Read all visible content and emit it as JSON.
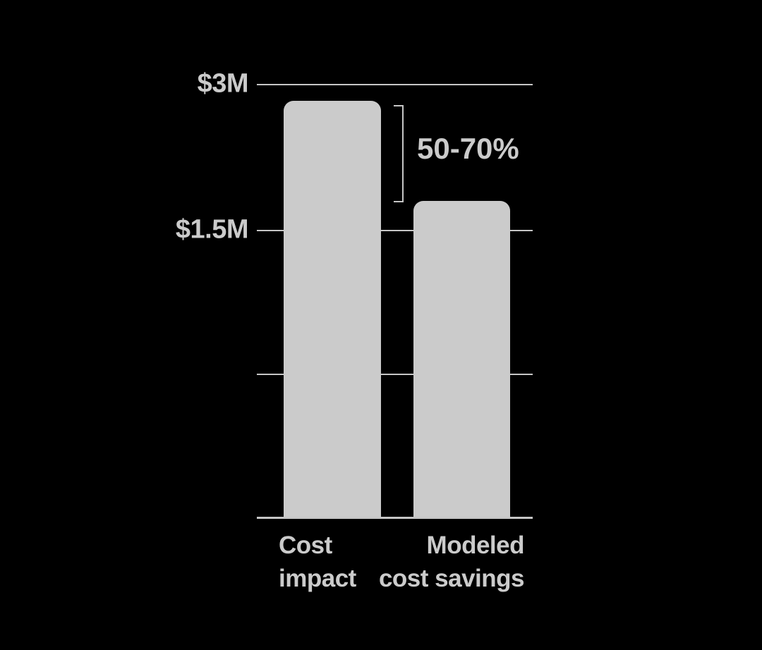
{
  "chart_data": {
    "type": "bar",
    "title": "",
    "xlabel": "",
    "ylabel": "",
    "categories": [
      "Cost impact",
      "Modeled cost savings"
    ],
    "values": [
      2.9,
      1.8
    ],
    "unit": "USD millions",
    "ytick_labels": [
      "$3M",
      "$1.5M"
    ],
    "ytick_values": [
      3,
      1.5
    ],
    "ylim": [
      0,
      3
    ],
    "grid": "horizontal gridlines, one unlabeled line between $1.5M and baseline",
    "legend": "none",
    "annotations": [
      {
        "text": "50-70%",
        "type": "range-bracket",
        "spans": "from top of 'Cost impact' bar down to top of 'Modeled cost savings' bar"
      }
    ]
  },
  "bars": [
    {
      "name": "cost-impact",
      "label_lines": [
        "Cost",
        "impact"
      ]
    },
    {
      "name": "modeled-cost-savings",
      "label_lines": [
        "Modeled",
        "cost savings"
      ]
    }
  ],
  "annotation": {
    "range_label": "50-70%"
  },
  "colors": {
    "background": "#000000",
    "bar_fill": "#cbcbcb",
    "grid_line": "#c6c6c6",
    "text": "#cbcbcb"
  }
}
